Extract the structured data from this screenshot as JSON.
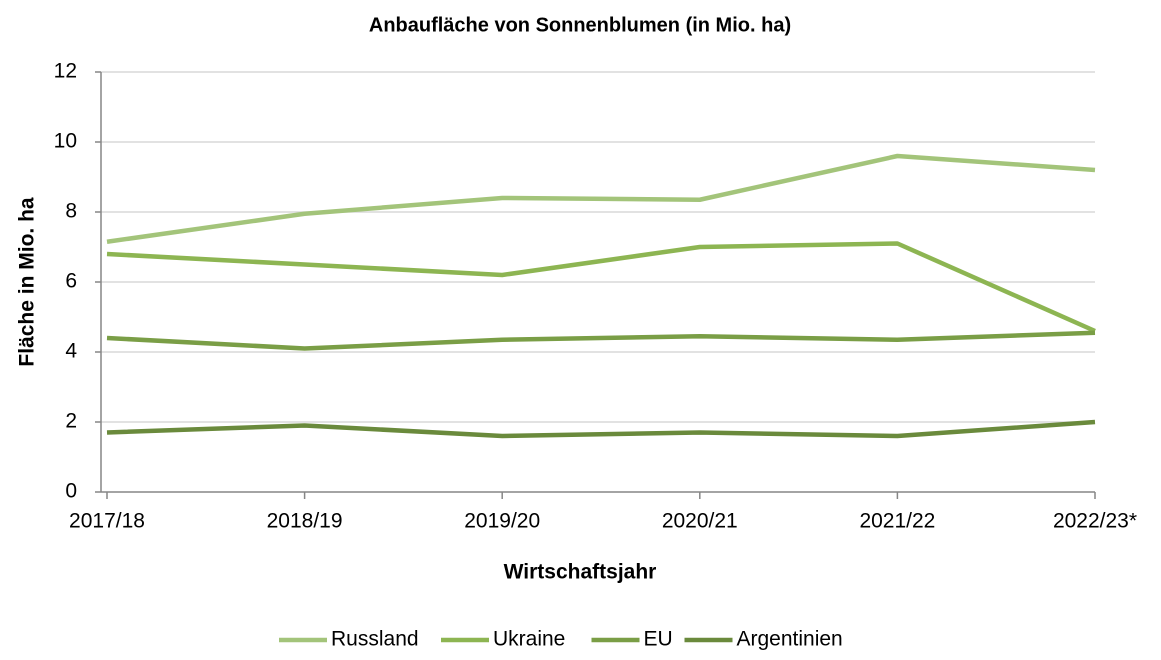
{
  "chart_data": {
    "type": "line",
    "title": "Anbaufläche von Sonnenblumen (in Mio. ha)",
    "x_label": "Wirtschaftsjahr",
    "y_label": "Fläche in Mio. ha",
    "categories": [
      "2017/18",
      "2018/19",
      "2019/20",
      "2020/21",
      "2021/22",
      "2022/23*"
    ],
    "series": [
      {
        "name": "Russland",
        "color": "#a3c47a",
        "values": [
          7.15,
          7.95,
          8.4,
          8.35,
          9.6,
          9.2
        ]
      },
      {
        "name": "Ukraine",
        "color": "#8db552",
        "values": [
          6.8,
          6.5,
          6.2,
          7.0,
          7.1,
          4.6
        ]
      },
      {
        "name": "EU",
        "color": "#7a9e46",
        "values": [
          4.4,
          4.1,
          4.35,
          4.45,
          4.35,
          4.55
        ]
      },
      {
        "name": "Argentinien",
        "color": "#6a8a3c",
        "values": [
          1.7,
          1.9,
          1.6,
          1.7,
          1.6,
          2.0
        ]
      }
    ],
    "ylim": [
      0,
      12
    ],
    "yticks": [
      0,
      2,
      4,
      6,
      8,
      10,
      12
    ],
    "grid": true,
    "legend": "bottom"
  }
}
